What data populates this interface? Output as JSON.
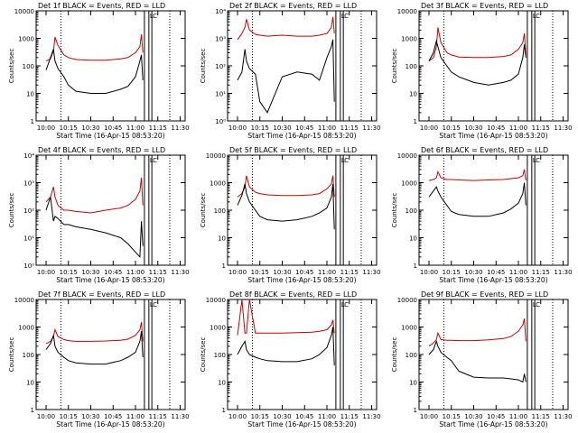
{
  "colors": {
    "events": "#000000",
    "lld": "#cc0000",
    "frame": "#000000"
  },
  "shared": {
    "xlabel": "Start Time (16-Apr-15 08:53:20)",
    "ylabel": "Counts/sec",
    "x_ticks": [
      "10:00",
      "10:15",
      "10:30",
      "10:45",
      "11:00",
      "11:15",
      "11:30"
    ],
    "xlim": [
      "09:53:20",
      "11:33:20"
    ],
    "y_scale": "log",
    "dotted_lines": [
      "10:10",
      "11:23"
    ],
    "solid_lines": [
      "11:06",
      "11:09",
      "11:11"
    ],
    "markers": [
      "L",
      "C"
    ]
  },
  "chart_data": [
    {
      "type": "line",
      "title": "Det 1f BLACK = Events, RED = LLD",
      "ylim": [
        1,
        10000
      ],
      "tick_style": "plain",
      "y_ticks": [
        "1",
        "10",
        "100",
        "1000",
        "10000"
      ],
      "x": [
        "10:00",
        "10:03",
        "10:05",
        "10:06",
        "10:08",
        "10:12",
        "10:15",
        "10:20",
        "10:30",
        "10:40",
        "10:50",
        "10:55",
        "11:00",
        "11:03",
        "11:04",
        "11:05"
      ],
      "series": [
        {
          "name": "LLD",
          "values": [
            150,
            180,
            350,
            1100,
            550,
            250,
            200,
            170,
            160,
            160,
            180,
            200,
            300,
            500,
            1400,
            300
          ]
        },
        {
          "name": "Events",
          "values": [
            70,
            200,
            400,
            150,
            80,
            40,
            20,
            12,
            10,
            10,
            14,
            18,
            40,
            150,
            250,
            30
          ]
        }
      ]
    },
    {
      "type": "line",
      "title": "Det 2f BLACK = Events, RED = LLD",
      "ylim": [
        1,
        10000
      ],
      "tick_style": "exponent",
      "y_ticks": [
        "10⁰",
        "10¹",
        "10²",
        "10³",
        "10⁴"
      ],
      "x": [
        "10:00",
        "10:03",
        "10:05",
        "10:06",
        "10:08",
        "10:12",
        "10:15",
        "10:20",
        "10:30",
        "10:40",
        "10:50",
        "10:55",
        "11:00",
        "11:03",
        "11:04",
        "11:05"
      ],
      "series": [
        {
          "name": "LLD",
          "values": [
            900,
            1500,
            2500,
            5000,
            2000,
            1400,
            1300,
            1200,
            1300,
            1200,
            1200,
            1300,
            1500,
            2500,
            6000,
            1500
          ]
        },
        {
          "name": "Events",
          "values": [
            30,
            60,
            400,
            150,
            80,
            50,
            5,
            2,
            40,
            60,
            50,
            30,
            200,
            500,
            900,
            5
          ]
        }
      ]
    },
    {
      "type": "line",
      "title": "Det 3f BLACK = Events, RED = LLD",
      "ylim": [
        1,
        10000
      ],
      "tick_style": "plain",
      "y_ticks": [
        "1",
        "10",
        "100",
        "1000",
        "10000"
      ],
      "x": [
        "10:00",
        "10:03",
        "10:05",
        "10:06",
        "10:08",
        "10:12",
        "10:15",
        "10:20",
        "10:30",
        "10:40",
        "10:50",
        "10:55",
        "11:00",
        "11:03",
        "11:04",
        "11:05"
      ],
      "series": [
        {
          "name": "LLD",
          "values": [
            150,
            200,
            500,
            2500,
            700,
            300,
            250,
            210,
            200,
            200,
            220,
            250,
            400,
            700,
            1500,
            250
          ]
        },
        {
          "name": "Events",
          "values": [
            150,
            300,
            800,
            500,
            200,
            100,
            60,
            40,
            25,
            20,
            25,
            30,
            50,
            200,
            600,
            200
          ]
        }
      ]
    },
    {
      "type": "line",
      "title": "Det 4f BLACK = Events, RED = LLD",
      "ylim": [
        1,
        10000
      ],
      "tick_style": "exponent",
      "y_ticks": [
        "10⁰",
        "10¹",
        "10²",
        "10³",
        "10⁴"
      ],
      "x": [
        "10:00",
        "10:03",
        "10:05",
        "10:06",
        "10:08",
        "10:12",
        "10:15",
        "10:20",
        "10:30",
        "10:40",
        "10:50",
        "10:55",
        "11:00",
        "11:03",
        "11:04",
        "11:05"
      ],
      "series": [
        {
          "name": "LLD",
          "values": [
            200,
            300,
            700,
            300,
            150,
            100,
            100,
            90,
            80,
            100,
            120,
            150,
            250,
            500,
            1500,
            150
          ]
        },
        {
          "name": "Events",
          "values": [
            100,
            300,
            40,
            60,
            50,
            30,
            30,
            25,
            20,
            15,
            10,
            6,
            3,
            2,
            40,
            5
          ]
        }
      ]
    },
    {
      "type": "line",
      "title": "Det 5f BLACK = Events, RED = LLD",
      "ylim": [
        1,
        10000
      ],
      "tick_style": "plain",
      "y_ticks": [
        "1",
        "10",
        "100",
        "1000",
        "10000"
      ],
      "x": [
        "10:00",
        "10:03",
        "10:05",
        "10:06",
        "10:08",
        "10:12",
        "10:15",
        "10:20",
        "10:30",
        "10:40",
        "10:50",
        "10:55",
        "11:00",
        "11:03",
        "11:04",
        "11:05"
      ],
      "series": [
        {
          "name": "LLD",
          "values": [
            300,
            400,
            700,
            1800,
            700,
            450,
            400,
            360,
            340,
            340,
            360,
            400,
            600,
            900,
            1800,
            300
          ]
        },
        {
          "name": "Events",
          "values": [
            150,
            350,
            900,
            400,
            200,
            100,
            60,
            45,
            40,
            45,
            60,
            80,
            120,
            300,
            900,
            20
          ]
        }
      ]
    },
    {
      "type": "line",
      "title": "Det 6f BLACK = Events, RED = LLD",
      "ylim": [
        1,
        10000
      ],
      "tick_style": "plain",
      "y_ticks": [
        "1",
        "10",
        "100",
        "1000",
        "10000"
      ],
      "x": [
        "10:00",
        "10:03",
        "10:05",
        "10:06",
        "10:08",
        "10:12",
        "10:15",
        "10:20",
        "10:30",
        "10:40",
        "10:50",
        "10:55",
        "11:00",
        "11:03",
        "11:04",
        "11:05"
      ],
      "series": [
        {
          "name": "LLD",
          "values": [
            1200,
            1300,
            1500,
            2500,
            1500,
            1300,
            1300,
            1250,
            1200,
            1250,
            1300,
            1400,
            1500,
            1800,
            3000,
            1200
          ]
        },
        {
          "name": "Events",
          "values": [
            300,
            500,
            700,
            500,
            300,
            150,
            90,
            70,
            60,
            60,
            80,
            110,
            180,
            400,
            1000,
            150
          ]
        }
      ]
    },
    {
      "type": "line",
      "title": "Det 7f BLACK = Events, RED = LLD",
      "ylim": [
        1,
        10000
      ],
      "tick_style": "plain",
      "y_ticks": [
        "1",
        "10",
        "100",
        "1000",
        "10000"
      ],
      "x": [
        "10:00",
        "10:03",
        "10:05",
        "10:06",
        "10:08",
        "10:12",
        "10:15",
        "10:20",
        "10:30",
        "10:40",
        "10:50",
        "10:55",
        "11:00",
        "11:03",
        "11:04",
        "11:05"
      ],
      "series": [
        {
          "name": "LLD",
          "values": [
            250,
            300,
            450,
            800,
            450,
            350,
            320,
            300,
            300,
            310,
            330,
            360,
            500,
            800,
            1500,
            300
          ]
        },
        {
          "name": "Events",
          "values": [
            150,
            250,
            500,
            200,
            120,
            80,
            60,
            50,
            45,
            45,
            60,
            80,
            120,
            300,
            700,
            80
          ]
        }
      ]
    },
    {
      "type": "line",
      "title": "Det 8f BLACK = Events, RED = LLD",
      "ylim": [
        1,
        10000
      ],
      "tick_style": "plain",
      "y_ticks": [
        "1",
        "10",
        "100",
        "1000",
        "10000"
      ],
      "x": [
        "10:00",
        "10:03",
        "10:05",
        "10:06",
        "10:08",
        "10:12",
        "10:15",
        "10:20",
        "10:30",
        "10:40",
        "10:50",
        "10:55",
        "11:00",
        "11:03",
        "11:04",
        "11:05"
      ],
      "series": [
        {
          "name": "LLD",
          "values": [
            500,
            10000,
            600,
            600,
            10000,
            600,
            600,
            600,
            600,
            620,
            650,
            700,
            800,
            1200,
            1800,
            600
          ]
        },
        {
          "name": "Events",
          "values": [
            100,
            200,
            300,
            150,
            100,
            80,
            70,
            60,
            55,
            55,
            70,
            100,
            180,
            500,
            1000,
            40
          ]
        }
      ]
    },
    {
      "type": "line",
      "title": "Det 9f BLACK = Events, RED = LLD",
      "ylim": [
        1,
        10000
      ],
      "tick_style": "plain",
      "y_ticks": [
        "1",
        "10",
        "100",
        "1000",
        "10000"
      ],
      "x": [
        "10:00",
        "10:03",
        "10:05",
        "10:06",
        "10:08",
        "10:12",
        "10:15",
        "10:20",
        "10:30",
        "10:40",
        "10:50",
        "10:55",
        "11:00",
        "11:03",
        "11:04",
        "11:05"
      ],
      "series": [
        {
          "name": "LLD",
          "values": [
            200,
            260,
            350,
            600,
            350,
            330,
            330,
            320,
            320,
            340,
            380,
            450,
            700,
            1200,
            2000,
            300
          ]
        },
        {
          "name": "Events",
          "values": [
            100,
            150,
            300,
            200,
            120,
            80,
            60,
            25,
            15,
            14,
            14,
            13,
            12,
            10,
            20,
            10
          ]
        }
      ]
    }
  ]
}
